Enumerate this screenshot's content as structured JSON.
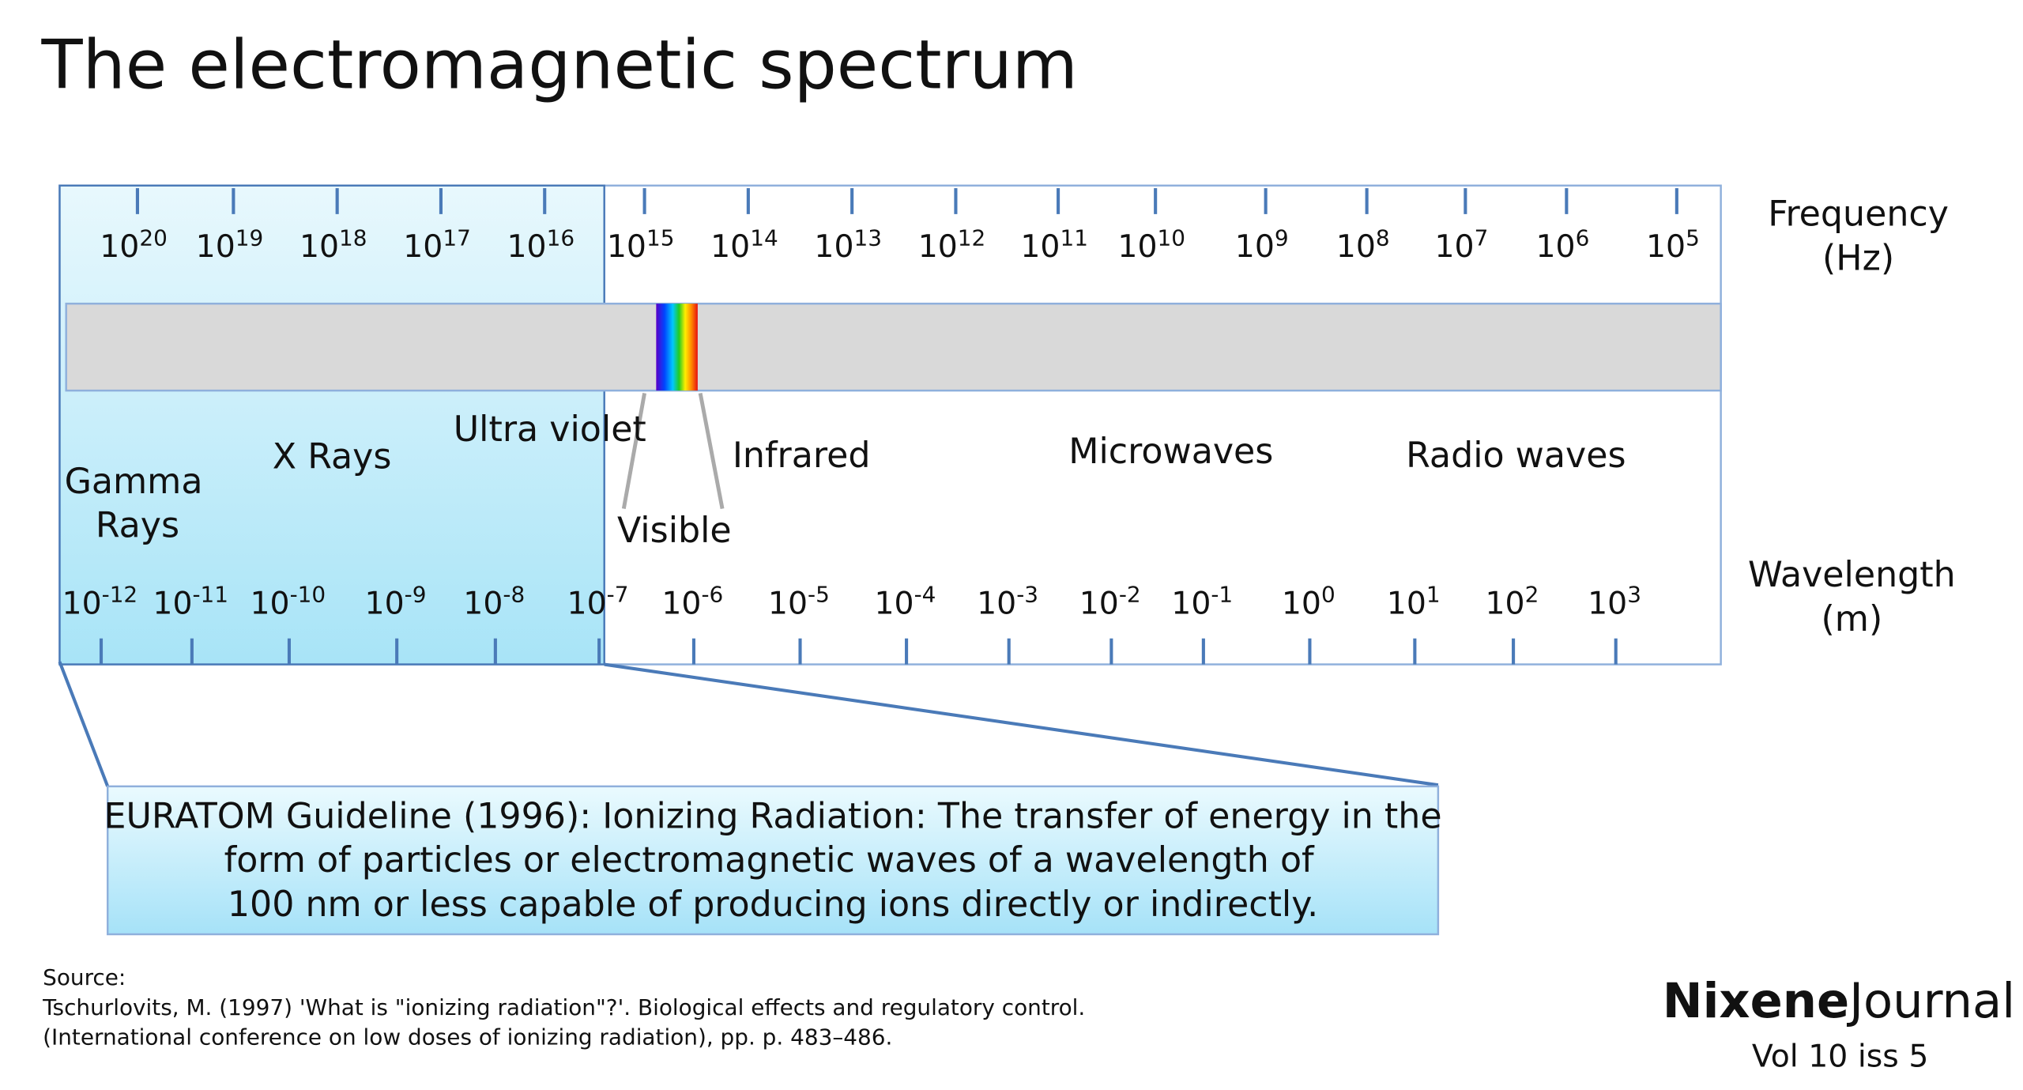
{
  "title": "The electromagnetic spectrum",
  "frequency_axis": {
    "label_line1": "Frequency",
    "label_line2": "(Hz)",
    "base": "10",
    "exponents": [
      "20",
      "19",
      "18",
      "17",
      "16",
      "15",
      "14",
      "13",
      "12",
      "11",
      "10",
      "9",
      "8",
      "7",
      "6",
      "5"
    ]
  },
  "wavelength_axis": {
    "label_line1": "Wavelength",
    "label_line2": "(m)",
    "base": "10",
    "exponents": [
      "-12",
      "-11",
      "-10",
      "-9",
      "-8",
      "-7",
      "-6",
      "-5",
      "-4",
      "-3",
      "-2",
      "-1",
      "0",
      "1",
      "2",
      "3"
    ]
  },
  "regions": {
    "gamma_line1": "Gamma",
    "gamma_line2": "Rays",
    "xrays": "X Rays",
    "ultraviolet": "Ultra violet",
    "visible": "Visible",
    "infrared": "Infrared",
    "microwaves": "Microwaves",
    "radio": "Radio waves"
  },
  "definition": {
    "line1": "EURATOM Guideline (1996): Ionizing Radiation: The transfer of energy in the",
    "line2": "form of particles or electromagnetic waves of a wavelength of",
    "line3": "100 nm or less  capable of producing ions directly or indirectly."
  },
  "source": {
    "heading": "Source:",
    "line1": "Tschurlovits, M. (1997) 'What is \"ionizing radiation\"?'. Biological effects and regulatory control.",
    "line2": "(International conference on low doses of ionizing radiation), pp. p. 483–486."
  },
  "brand": {
    "name_bold": "Nixene",
    "name_light": "Journal",
    "issue": "Vol 10  iss 5"
  }
}
